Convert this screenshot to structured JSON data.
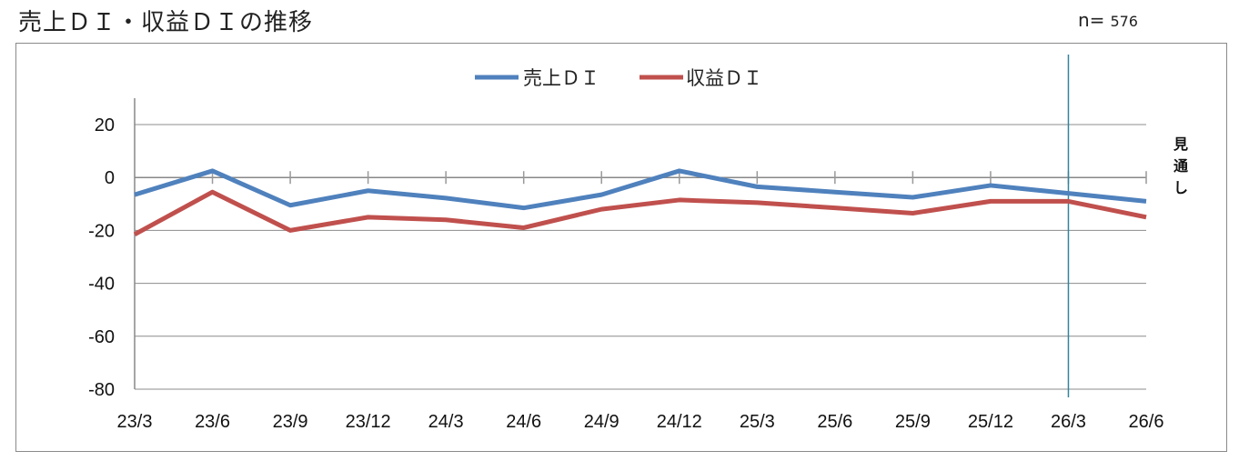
{
  "header": {
    "title": "売上ＤＩ・収益ＤＩの推移",
    "n_label": "n=",
    "n_value": "576"
  },
  "chart_data": {
    "type": "line",
    "title": "売上ＤＩ・収益ＤＩの推移",
    "categories": [
      "23/3",
      "23/6",
      "23/9",
      "23/12",
      "24/3",
      "24/6",
      "24/9",
      "24/12",
      "25/3",
      "25/6",
      "25/9",
      "25/12",
      "26/3",
      "26/6"
    ],
    "series": [
      {
        "name": "売上ＤＩ",
        "color": "#4f81bd",
        "values": [
          -6.5,
          2.5,
          -10.5,
          -5.0,
          -7.8,
          -11.5,
          -6.5,
          2.5,
          -3.5,
          -5.5,
          -7.5,
          -3.0,
          -6.0,
          -9.0
        ]
      },
      {
        "name": "収益ＤＩ",
        "color": "#c0504d",
        "values": [
          -21.5,
          -5.5,
          -20.0,
          -15.0,
          -16.0,
          -19.0,
          -12.0,
          -8.5,
          -9.5,
          -11.5,
          -13.5,
          -9.0,
          -9.0,
          -15.0
        ]
      }
    ],
    "yticks": [
      20,
      0,
      -20,
      -40,
      -60,
      -80
    ],
    "ylim": [
      -80,
      20
    ],
    "grid": true,
    "legend_position": "top-center",
    "annotation": "見通し",
    "forecast_divider_after": "26/3",
    "divider_color": "#31859c"
  }
}
